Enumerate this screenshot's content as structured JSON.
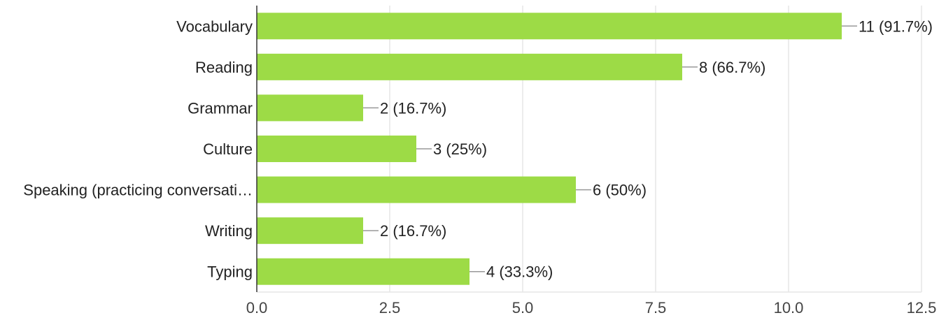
{
  "chart_data": {
    "type": "bar",
    "orientation": "horizontal",
    "categories": [
      "Vocabulary",
      "Reading",
      "Grammar",
      "Culture",
      "Speaking (practicing conversati…",
      "Writing",
      "Typing"
    ],
    "values": [
      11,
      8,
      2,
      3,
      6,
      2,
      4
    ],
    "data_labels": [
      "11 (91.7%)",
      "8 (66.7%)",
      "2 (16.7%)",
      "3 (25%)",
      "6 (50%)",
      "2 (16.7%)",
      "4 (33.3%)"
    ],
    "x_ticks": [
      "0.0",
      "2.5",
      "5.0",
      "7.5",
      "10.0",
      "12.5"
    ],
    "x_tick_values": [
      0,
      2.5,
      5,
      7.5,
      10,
      12.5
    ],
    "xlim": [
      0,
      12.5
    ],
    "grid": "vertical",
    "legend": "none",
    "bar_color": "#9ddb46",
    "title": "",
    "xlabel": "",
    "ylabel": ""
  }
}
